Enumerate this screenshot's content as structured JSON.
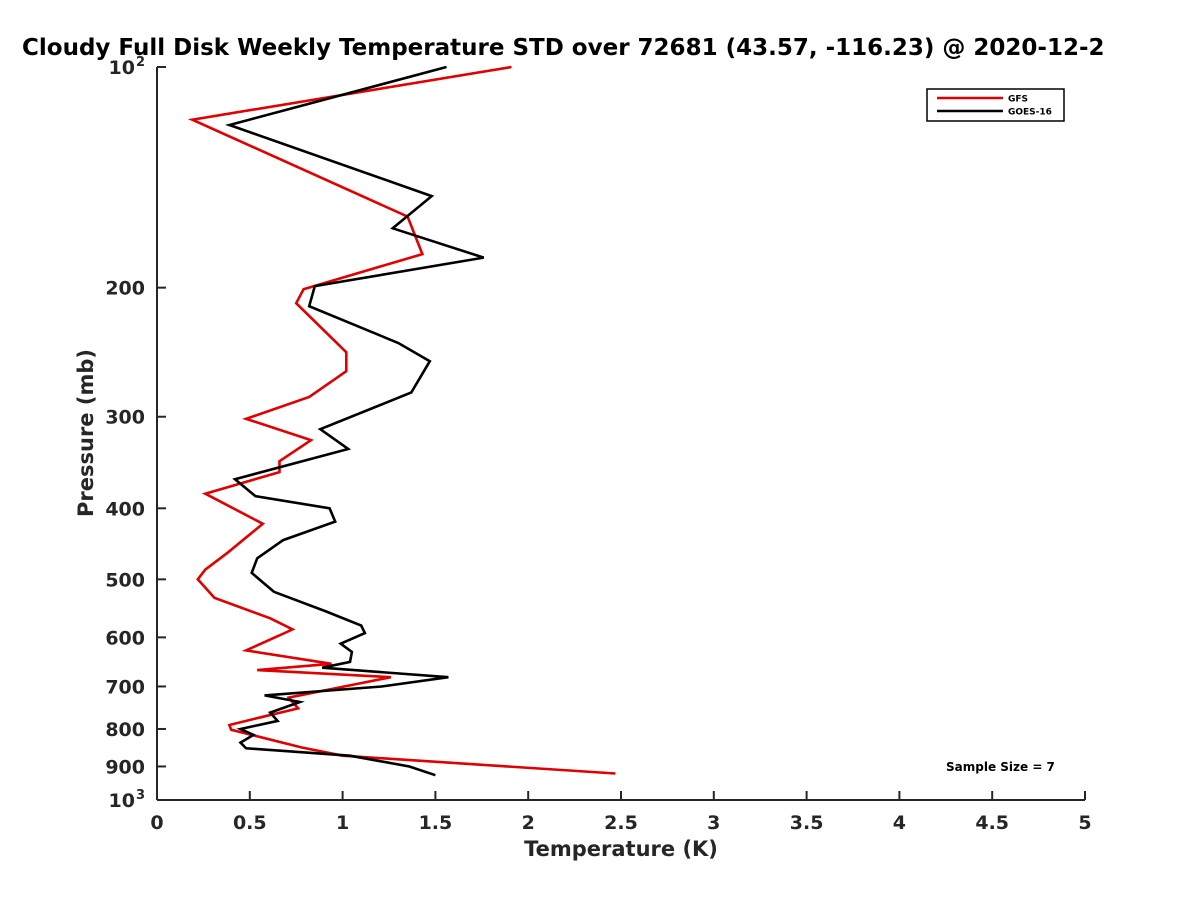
{
  "chart_data": {
    "type": "line",
    "title": "Cloudy Full Disk Weekly Temperature STD over 72681 (43.57, -116.23) @ 2020-12-2",
    "xlabel": "Temperature (K)",
    "ylabel": "Pressure (mb)",
    "xlim": [
      0,
      5
    ],
    "ylim": [
      1000,
      100
    ],
    "yscale": "log",
    "x_ticks": [
      "0",
      "0.5",
      "1",
      "1.5",
      "2",
      "2.5",
      "3",
      "3.5",
      "4",
      "4.5",
      "5"
    ],
    "y_ticks": [
      {
        "value": 100,
        "label": "10",
        "sup": "2"
      },
      {
        "value": 200,
        "label": "200",
        "sup": ""
      },
      {
        "value": 300,
        "label": "300",
        "sup": ""
      },
      {
        "value": 400,
        "label": "400",
        "sup": ""
      },
      {
        "value": 500,
        "label": "500",
        "sup": ""
      },
      {
        "value": 600,
        "label": "600",
        "sup": ""
      },
      {
        "value": 700,
        "label": "700",
        "sup": ""
      },
      {
        "value": 800,
        "label": "800",
        "sup": ""
      },
      {
        "value": 900,
        "label": "900",
        "sup": ""
      },
      {
        "value": 1000,
        "label": "10",
        "sup": "3"
      }
    ],
    "legend_position": "top-right",
    "series": [
      {
        "name": "GFS",
        "color": "#e00000",
        "points": [
          [
            1.91,
            100
          ],
          [
            0.19,
            118
          ],
          [
            1.35,
            160
          ],
          [
            1.43,
            180
          ],
          [
            0.79,
            201
          ],
          [
            0.75,
            210
          ],
          [
            1.02,
            245
          ],
          [
            1.02,
            260
          ],
          [
            0.82,
            282
          ],
          [
            0.48,
            302
          ],
          [
            0.83,
            323
          ],
          [
            0.66,
            345
          ],
          [
            0.66,
            357
          ],
          [
            0.26,
            382
          ],
          [
            0.57,
            420
          ],
          [
            0.38,
            460
          ],
          [
            0.26,
            485
          ],
          [
            0.22,
            500
          ],
          [
            0.31,
            530
          ],
          [
            0.61,
            565
          ],
          [
            0.73,
            585
          ],
          [
            0.7,
            590
          ],
          [
            0.48,
            625
          ],
          [
            0.94,
            652
          ],
          [
            0.54,
            665
          ],
          [
            1.26,
            680
          ],
          [
            0.71,
            725
          ],
          [
            0.76,
            750
          ],
          [
            0.57,
            770
          ],
          [
            0.39,
            790
          ],
          [
            0.4,
            802
          ],
          [
            0.78,
            848
          ],
          [
            1.0,
            870
          ],
          [
            2.47,
            920
          ]
        ]
      },
      {
        "name": "GOES-16",
        "color": "#000000",
        "points": [
          [
            1.56,
            100
          ],
          [
            0.39,
            120
          ],
          [
            1.48,
            150
          ],
          [
            1.27,
            166
          ],
          [
            1.76,
            182
          ],
          [
            0.85,
            199
          ],
          [
            0.82,
            212
          ],
          [
            1.3,
            238
          ],
          [
            1.47,
            252
          ],
          [
            1.37,
            278
          ],
          [
            0.88,
            312
          ],
          [
            1.03,
            332
          ],
          [
            0.42,
            365
          ],
          [
            0.53,
            385
          ],
          [
            0.93,
            400
          ],
          [
            0.96,
            417
          ],
          [
            0.68,
            442
          ],
          [
            0.54,
            468
          ],
          [
            0.51,
            490
          ],
          [
            0.63,
            520
          ],
          [
            0.91,
            553
          ],
          [
            1.1,
            578
          ],
          [
            1.12,
            592
          ],
          [
            0.99,
            612
          ],
          [
            1.05,
            628
          ],
          [
            1.04,
            648
          ],
          [
            0.89,
            660
          ],
          [
            1.57,
            680
          ],
          [
            1.21,
            700
          ],
          [
            0.58,
            720
          ],
          [
            0.77,
            735
          ],
          [
            0.61,
            760
          ],
          [
            0.65,
            780
          ],
          [
            0.45,
            800
          ],
          [
            0.52,
            815
          ],
          [
            0.45,
            835
          ],
          [
            0.48,
            850
          ],
          [
            1.04,
            870
          ],
          [
            1.36,
            900
          ],
          [
            1.5,
            925
          ]
        ]
      }
    ],
    "annotations": [
      {
        "text": "Sample Size = 7",
        "position": "bottom-right"
      }
    ]
  }
}
